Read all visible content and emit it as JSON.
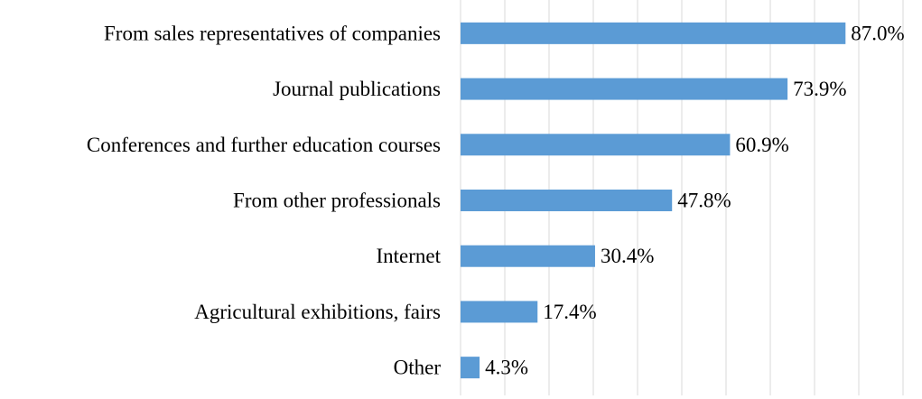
{
  "chart_data": {
    "type": "bar",
    "orientation": "horizontal",
    "categories": [
      "From sales representatives of companies",
      "Journal publications",
      "Conferences and further education courses",
      "From other professionals",
      "Internet",
      "Agricultural exhibitions, fairs",
      "Other"
    ],
    "values": [
      87.0,
      73.9,
      60.9,
      47.8,
      30.4,
      17.4,
      4.3
    ],
    "value_labels": [
      "87.0%",
      "73.9%",
      "60.9%",
      "47.8%",
      "30.4%",
      "17.4%",
      "4.3%"
    ],
    "title": "",
    "xlabel": "",
    "ylabel": "",
    "xlim": [
      0,
      100
    ],
    "grid": true,
    "legend": "none",
    "bar_color": "#5b9bd5"
  }
}
